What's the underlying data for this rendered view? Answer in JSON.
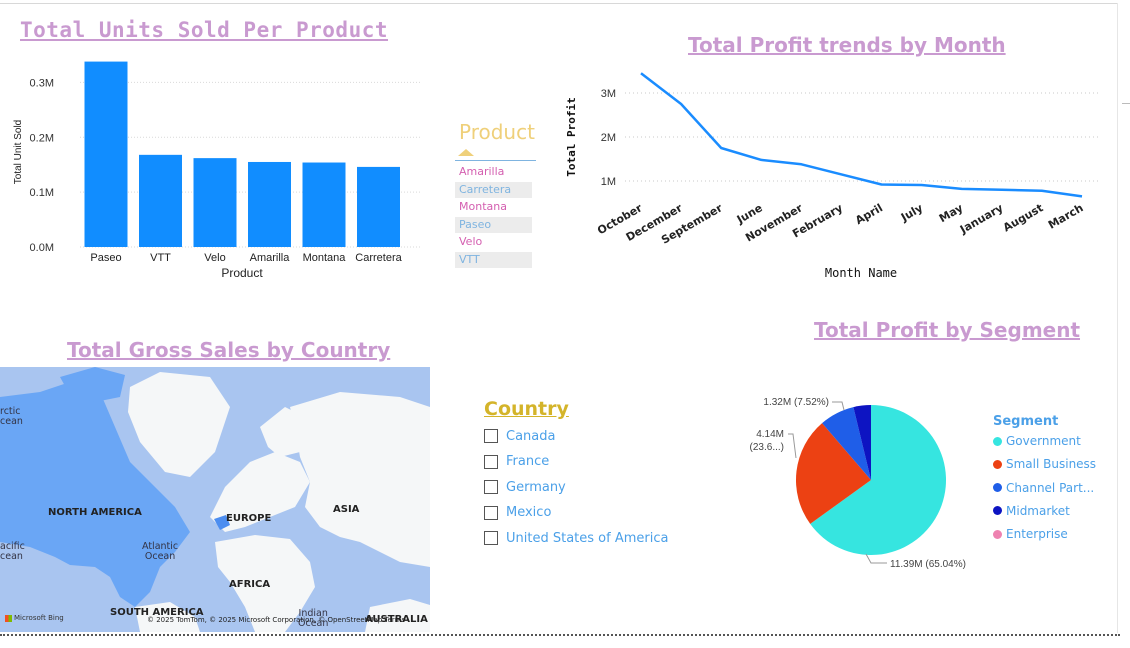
{
  "bar_chart": {
    "title": "Total Units Sold Per Product",
    "chart_data": {
      "type": "bar",
      "categories": [
        "Paseo",
        "VTT",
        "Velo",
        "Amarilla",
        "Montana",
        "Carretera"
      ],
      "values": [
        338000,
        168000,
        162000,
        155000,
        154000,
        146000
      ],
      "ylabel": "Total Unit Sold",
      "xlabel": "Product",
      "yticks": [
        "0.0M",
        "0.1M",
        "0.2M",
        "0.3M"
      ],
      "ylim": [
        0,
        0.35
      ],
      "grid": true
    }
  },
  "product_slicer": {
    "title": "Product",
    "items": [
      {
        "label": "Amarilla",
        "color": "#d45fb0"
      },
      {
        "label": "Carretera",
        "color": "#7fb4e0"
      },
      {
        "label": "Montana",
        "color": "#d45fb0"
      },
      {
        "label": "Paseo",
        "color": "#7fb4e0"
      },
      {
        "label": "Velo",
        "color": "#d45fb0"
      },
      {
        "label": "VTT",
        "color": "#7fb4e0"
      }
    ]
  },
  "line_chart": {
    "title": "Total Profit trends by Month",
    "chart_data": {
      "type": "line",
      "x": [
        "October",
        "December",
        "September",
        "June",
        "November",
        "February",
        "April",
        "July",
        "May",
        "January",
        "August",
        "March"
      ],
      "values": [
        3.45,
        2.75,
        1.75,
        1.48,
        1.38,
        1.15,
        0.92,
        0.91,
        0.82,
        0.8,
        0.78,
        0.65
      ],
      "ylabel": "Total Profit",
      "xlabel": "Month Name",
      "yticks": [
        "1M",
        "2M",
        "3M"
      ],
      "ylim": [
        0,
        3.6
      ],
      "color": "#1a8cff",
      "grid": true
    }
  },
  "map": {
    "title": "Total Gross Sales by Country",
    "labels": {
      "arctic": "rctic\ncean",
      "pacific": "acific\ncean",
      "north_america": "NORTH AMERICA",
      "atlantic": "Atlantic\nOcean",
      "europe": "EUROPE",
      "asia": "ASIA",
      "africa": "AFRICA",
      "south_america": "SOUTH AMERICA",
      "indian": "Indian\nOcean",
      "australia": "AUSTRALIA"
    },
    "bing": "Microsoft Bing",
    "attribution": "© 2025 TomTom, © 2025 Microsoft Corporation, © OpenStreetMap Terms"
  },
  "country_slicer": {
    "title": "Country",
    "items": [
      "Canada",
      "France",
      "Germany",
      "Mexico",
      "United States of America"
    ]
  },
  "pie_chart": {
    "title": "Total Profit by Segment",
    "chart_data": {
      "type": "pie",
      "labels": [
        "Government",
        "Small Business",
        "Channel Partners",
        "Midmarket",
        "Enterprise"
      ],
      "values": [
        11.39,
        4.14,
        1.32,
        0.66,
        0.0
      ],
      "colors": [
        "#36e5e0",
        "#ec4113",
        "#1f5ee8",
        "#0d14c2",
        "#ee82b0"
      ]
    },
    "data_labels": [
      "11.39M (65.04%)",
      "4.14M\n(23.6...)",
      "1.32M (7.52%)"
    ],
    "legend_title": "Segment",
    "legend_items": [
      {
        "label": "Government",
        "color": "#36e5e0"
      },
      {
        "label": "Small Business",
        "color": "#ec4113"
      },
      {
        "label": "Channel Part...",
        "color": "#1f5ee8"
      },
      {
        "label": "Midmarket",
        "color": "#0d14c2"
      },
      {
        "label": "Enterprise",
        "color": "#ee82b0"
      }
    ]
  }
}
